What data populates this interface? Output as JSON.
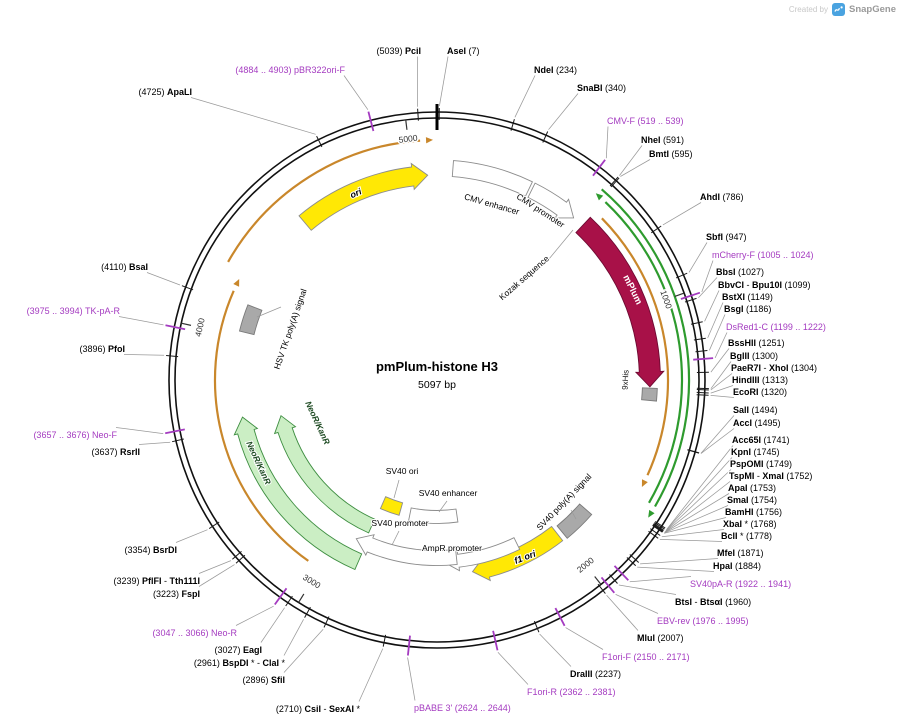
{
  "watermark": {
    "prefix": "Created by",
    "brand": "SnapGene"
  },
  "plasmid": {
    "name": "pmPlum-histone H3",
    "size_label": "5097 bp",
    "length_bp": 5097
  },
  "scale": {
    "ticks": [
      {
        "bp": 1000,
        "label": "1000"
      },
      {
        "bp": 2000,
        "label": "2000"
      },
      {
        "bp": 3000,
        "label": "3000"
      },
      {
        "bp": 4000,
        "label": "4000"
      },
      {
        "bp": 5000,
        "label": "5000"
      }
    ]
  },
  "palette": {
    "primer": "#A43BC0",
    "yellow": "#FFE805",
    "gray_feature": "#A9A9A9",
    "mplum": "#A81148",
    "cds_fill": "#CBEEC4",
    "cds_stroke": "#3E8E41",
    "orf_orange": "#C9872B",
    "orf_green": "#2E9B2E",
    "leader": "#999999",
    "scale_text": "#333333"
  },
  "features": [
    {
      "id": "ori",
      "label": "ori"
    },
    {
      "id": "cmv-enhancer",
      "label": "CMV enhancer"
    },
    {
      "id": "cmv-promoter",
      "label": "CMV promoter"
    },
    {
      "id": "kozak",
      "label": "Kozak sequence"
    },
    {
      "id": "mplum",
      "label": "mPlum"
    },
    {
      "id": "his9",
      "label": "9xHis"
    },
    {
      "id": "sv40-pa",
      "label": "SV40 poly(A) signal"
    },
    {
      "id": "f1-ori",
      "label": "f1 ori"
    },
    {
      "id": "ampr-promoter",
      "label": "AmpR promoter"
    },
    {
      "id": "sv40-promoter",
      "label": "SV40 promoter"
    },
    {
      "id": "sv40-enhancer",
      "label": "SV40 enhancer"
    },
    {
      "id": "sv40-ori",
      "label": "SV40 ori"
    },
    {
      "id": "neor-kanr-outer",
      "label": "NeoR/KanR"
    },
    {
      "id": "neor-kanr-inner",
      "label": "NeoR/KanR"
    },
    {
      "id": "hsv-tk-pa",
      "label": "HSV TK poly(A) signal"
    }
  ],
  "sites": [
    {
      "bp": 7,
      "kind": "enzyme",
      "runs": [
        {
          "t": "AseI",
          "b": true
        },
        {
          "t": " (7)",
          "b": false
        }
      ]
    },
    {
      "bp": 234,
      "kind": "enzyme",
      "runs": [
        {
          "t": "NdeI",
          "b": true
        },
        {
          "t": " (234)",
          "b": false
        }
      ]
    },
    {
      "bp": 340,
      "kind": "enzyme",
      "runs": [
        {
          "t": "SnaBI",
          "b": true
        },
        {
          "t": " (340)",
          "b": false
        }
      ]
    },
    {
      "bp": 529,
      "kind": "primer",
      "runs": [
        {
          "t": "CMV-F",
          "b": false
        },
        {
          "t": " (519 .. 539)",
          "b": false
        }
      ]
    },
    {
      "bp": 591,
      "kind": "enzyme",
      "runs": [
        {
          "t": "NheI",
          "b": true
        },
        {
          "t": " (591)",
          "b": false
        }
      ]
    },
    {
      "bp": 595,
      "kind": "enzyme",
      "runs": [
        {
          "t": "BmtI",
          "b": true
        },
        {
          "t": " (595)",
          "b": false
        }
      ]
    },
    {
      "bp": 786,
      "kind": "enzyme",
      "runs": [
        {
          "t": "AhdI",
          "b": true
        },
        {
          "t": " (786)",
          "b": false
        }
      ]
    },
    {
      "bp": 947,
      "kind": "enzyme",
      "runs": [
        {
          "t": "SbfI",
          "b": true
        },
        {
          "t": " (947)",
          "b": false
        }
      ]
    },
    {
      "bp": 1014,
      "kind": "primer",
      "runs": [
        {
          "t": "mCherry-F",
          "b": false
        },
        {
          "t": " (1005 .. 1024)",
          "b": false
        }
      ]
    },
    {
      "bp": 1027,
      "kind": "enzyme",
      "runs": [
        {
          "t": "BbsI",
          "b": true
        },
        {
          "t": " (1027)",
          "b": false
        }
      ]
    },
    {
      "bp": 1099,
      "kind": "enzyme",
      "runs": [
        {
          "t": "BbvCI",
          "b": true
        },
        {
          "t": " - ",
          "b": false
        },
        {
          "t": "Bpu10I",
          "b": true
        },
        {
          "t": " (1099)",
          "b": false
        }
      ]
    },
    {
      "bp": 1149,
      "kind": "enzyme",
      "runs": [
        {
          "t": "BstXI",
          "b": true
        },
        {
          "t": " (1149)",
          "b": false
        }
      ]
    },
    {
      "bp": 1186,
      "kind": "enzyme",
      "runs": [
        {
          "t": "BsgI",
          "b": true
        },
        {
          "t": " (1186)",
          "b": false
        }
      ]
    },
    {
      "bp": 1210,
      "kind": "primer",
      "runs": [
        {
          "t": "DsRed1-C",
          "b": false
        },
        {
          "t": " (1199 .. 1222)",
          "b": false
        }
      ]
    },
    {
      "bp": 1251,
      "kind": "enzyme",
      "runs": [
        {
          "t": "BssHII",
          "b": true
        },
        {
          "t": " (1251)",
          "b": false
        }
      ]
    },
    {
      "bp": 1300,
      "kind": "enzyme",
      "runs": [
        {
          "t": "BglII",
          "b": true
        },
        {
          "t": " (1300)",
          "b": false
        }
      ]
    },
    {
      "bp": 1304,
      "kind": "enzyme",
      "runs": [
        {
          "t": "PaeR7I",
          "b": true
        },
        {
          "t": " - ",
          "b": false
        },
        {
          "t": "XhoI",
          "b": true
        },
        {
          "t": " (1304)",
          "b": false
        }
      ]
    },
    {
      "bp": 1313,
      "kind": "enzyme",
      "runs": [
        {
          "t": "HindIII",
          "b": true
        },
        {
          "t": " (1313)",
          "b": false
        }
      ]
    },
    {
      "bp": 1320,
      "kind": "enzyme",
      "runs": [
        {
          "t": "EcoRI",
          "b": true
        },
        {
          "t": " (1320)",
          "b": false
        }
      ]
    },
    {
      "bp": 1494,
      "kind": "enzyme",
      "runs": [
        {
          "t": "SalI",
          "b": true
        },
        {
          "t": " (1494)",
          "b": false
        }
      ]
    },
    {
      "bp": 1495,
      "kind": "enzyme",
      "runs": [
        {
          "t": "AccI",
          "b": true
        },
        {
          "t": " (1495)",
          "b": false
        }
      ]
    },
    {
      "bp": 1741,
      "kind": "enzyme",
      "runs": [
        {
          "t": "Acc65I",
          "b": true
        },
        {
          "t": " (1741)",
          "b": false
        }
      ]
    },
    {
      "bp": 1745,
      "kind": "enzyme",
      "runs": [
        {
          "t": "KpnI",
          "b": true
        },
        {
          "t": " (1745)",
          "b": false
        }
      ]
    },
    {
      "bp": 1749,
      "kind": "enzyme",
      "runs": [
        {
          "t": "PspOMI",
          "b": true
        },
        {
          "t": " (1749)",
          "b": false
        }
      ]
    },
    {
      "bp": 1752,
      "kind": "enzyme",
      "runs": [
        {
          "t": "TspMI",
          "b": true
        },
        {
          "t": " - ",
          "b": false
        },
        {
          "t": "XmaI",
          "b": true
        },
        {
          "t": " (1752)",
          "b": false
        }
      ]
    },
    {
      "bp": 1753,
      "kind": "enzyme",
      "runs": [
        {
          "t": "ApaI",
          "b": true
        },
        {
          "t": " (1753)",
          "b": false
        }
      ]
    },
    {
      "bp": 1754,
      "kind": "enzyme",
      "runs": [
        {
          "t": "SmaI",
          "b": true
        },
        {
          "t": " (1754)",
          "b": false
        }
      ]
    },
    {
      "bp": 1756,
      "kind": "enzyme",
      "runs": [
        {
          "t": "BamHI",
          "b": true
        },
        {
          "t": " (1756)",
          "b": false
        }
      ]
    },
    {
      "bp": 1768,
      "kind": "enzyme",
      "runs": [
        {
          "t": "XbaI",
          "b": true
        },
        {
          "t": " * (1768)",
          "b": false
        }
      ]
    },
    {
      "bp": 1778,
      "kind": "enzyme",
      "runs": [
        {
          "t": "BclI",
          "b": true
        },
        {
          "t": " * (1778)",
          "b": false
        }
      ]
    },
    {
      "bp": 1871,
      "kind": "enzyme",
      "runs": [
        {
          "t": "MfeI",
          "b": true
        },
        {
          "t": " (1871)",
          "b": false
        }
      ]
    },
    {
      "bp": 1884,
      "kind": "enzyme",
      "runs": [
        {
          "t": "HpaI",
          "b": true
        },
        {
          "t": " (1884)",
          "b": false
        }
      ]
    },
    {
      "bp": 1930,
      "kind": "primer",
      "runs": [
        {
          "t": "SV40pA-R",
          "b": false
        },
        {
          "t": " (1922 .. 1941)",
          "b": false
        }
      ]
    },
    {
      "bp": 1960,
      "kind": "enzyme",
      "runs": [
        {
          "t": "BtsI",
          "b": true
        },
        {
          "t": " - ",
          "b": false
        },
        {
          "t": "BtsαI",
          "b": true
        },
        {
          "t": " (1960)",
          "b": false
        }
      ]
    },
    {
      "bp": 1985,
      "kind": "primer",
      "runs": [
        {
          "t": "EBV-rev",
          "b": false
        },
        {
          "t": " (1976 .. 1995)",
          "b": false
        }
      ]
    },
    {
      "bp": 2007,
      "kind": "enzyme",
      "runs": [
        {
          "t": "MluI",
          "b": true
        },
        {
          "t": " (2007)",
          "b": false
        }
      ]
    },
    {
      "bp": 2160,
      "kind": "primer",
      "runs": [
        {
          "t": "F1ori-F",
          "b": false
        },
        {
          "t": " (2150 .. 2171)",
          "b": false
        }
      ]
    },
    {
      "bp": 2237,
      "kind": "enzyme",
      "runs": [
        {
          "t": "DraIII",
          "b": true
        },
        {
          "t": " (2237)",
          "b": false
        }
      ]
    },
    {
      "bp": 2370,
      "kind": "primer",
      "runs": [
        {
          "t": "F1ori-R",
          "b": false
        },
        {
          "t": " (2362 .. 2381)",
          "b": false
        }
      ]
    },
    {
      "bp": 2634,
      "kind": "primer",
      "runs": [
        {
          "t": "pBABE 3'",
          "b": false
        },
        {
          "t": " (2624 .. 2644)",
          "b": false
        }
      ]
    },
    {
      "bp": 2710,
      "kind": "enzyme",
      "runs": [
        {
          "t": "(2710) ",
          "b": false
        },
        {
          "t": "CsiI",
          "b": true
        },
        {
          "t": " - ",
          "b": false
        },
        {
          "t": "SexAI",
          "b": true
        },
        {
          "t": " *",
          "b": false
        }
      ]
    },
    {
      "bp": 2896,
      "kind": "enzyme",
      "runs": [
        {
          "t": "(2896) ",
          "b": false
        },
        {
          "t": "SfiI",
          "b": true
        }
      ]
    },
    {
      "bp": 2961,
      "kind": "enzyme",
      "runs": [
        {
          "t": "(2961) ",
          "b": false
        },
        {
          "t": "BspDI",
          "b": true
        },
        {
          "t": " * - ",
          "b": false
        },
        {
          "t": "ClaI",
          "b": true
        },
        {
          "t": " *",
          "b": false
        }
      ]
    },
    {
      "bp": 3027,
      "kind": "enzyme",
      "runs": [
        {
          "t": "(3027) ",
          "b": false
        },
        {
          "t": "EagI",
          "b": true
        }
      ]
    },
    {
      "bp": 3056,
      "kind": "primer",
      "runs": [
        {
          "t": "(3047 .. 3066) ",
          "b": false
        },
        {
          "t": "Neo-R",
          "b": false
        }
      ]
    },
    {
      "bp": 3223,
      "kind": "enzyme",
      "runs": [
        {
          "t": "(3223) ",
          "b": false
        },
        {
          "t": "FspI",
          "b": true
        }
      ]
    },
    {
      "bp": 3239,
      "kind": "enzyme",
      "runs": [
        {
          "t": "(3239) ",
          "b": false
        },
        {
          "t": "PflFI",
          "b": true
        },
        {
          "t": " - ",
          "b": false
        },
        {
          "t": "Tth111I",
          "b": true
        }
      ]
    },
    {
      "bp": 3354,
      "kind": "enzyme",
      "runs": [
        {
          "t": "(3354) ",
          "b": false
        },
        {
          "t": "BsrDI",
          "b": true
        }
      ]
    },
    {
      "bp": 3637,
      "kind": "enzyme",
      "runs": [
        {
          "t": "(3637) ",
          "b": false
        },
        {
          "t": "RsrII",
          "b": true
        }
      ]
    },
    {
      "bp": 3666,
      "kind": "primer",
      "runs": [
        {
          "t": "(3657 .. 3676) ",
          "b": false
        },
        {
          "t": "Neo-F",
          "b": false
        }
      ]
    },
    {
      "bp": 3896,
      "kind": "enzyme",
      "runs": [
        {
          "t": "(3896) ",
          "b": false
        },
        {
          "t": "PfoI",
          "b": true
        }
      ]
    },
    {
      "bp": 3984,
      "kind": "primer",
      "runs": [
        {
          "t": "(3975 .. 3994) ",
          "b": false
        },
        {
          "t": "TK-pA-R",
          "b": false
        }
      ]
    },
    {
      "bp": 4110,
      "kind": "enzyme",
      "runs": [
        {
          "t": "(4110) ",
          "b": false
        },
        {
          "t": "BsaI",
          "b": true
        }
      ]
    },
    {
      "bp": 4725,
      "kind": "enzyme",
      "runs": [
        {
          "t": "(4725) ",
          "b": false
        },
        {
          "t": "ApaLI",
          "b": true
        }
      ]
    },
    {
      "bp": 4894,
      "kind": "primer",
      "runs": [
        {
          "t": "(4884 .. 4903) ",
          "b": false
        },
        {
          "t": "pBR322ori-F",
          "b": false
        }
      ]
    },
    {
      "bp": 5039,
      "kind": "enzyme",
      "runs": [
        {
          "t": "(5039) ",
          "b": false
        },
        {
          "t": "PciI",
          "b": true
        }
      ]
    }
  ]
}
